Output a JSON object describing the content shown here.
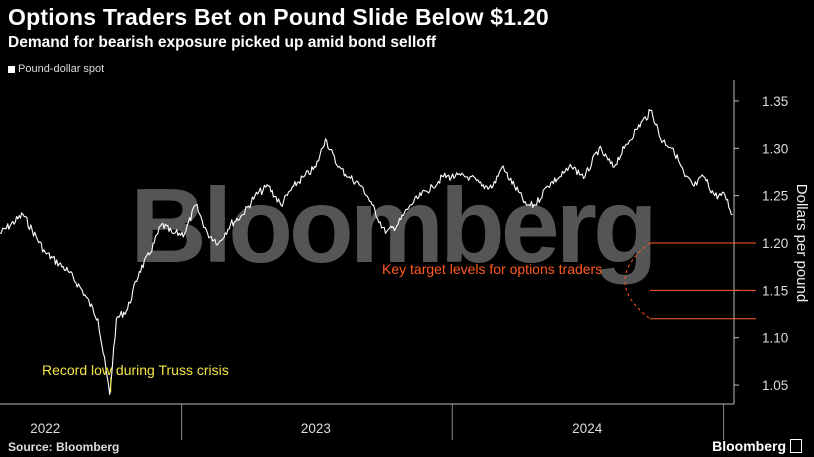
{
  "header": {
    "title": "Options Traders Bet on Pound Slide Below $1.20",
    "subtitle": "Demand for bearish exposure picked up amid bond selloff"
  },
  "legend_label": "Pound-dollar spot",
  "footer": {
    "source": "Source: Bloomberg",
    "brand": "Bloomberg"
  },
  "watermark": "Bloomberg",
  "colors": {
    "line": "#ffffff",
    "annotation_orange": "#ff5a1f",
    "annotation_yellow": "#f5e447",
    "watermark": "#9a9a9a"
  },
  "chart_data": {
    "type": "line",
    "title": "Options Traders Bet on Pound Slide Below $1.20",
    "subtitle": "Demand for bearish exposure picked up amid bond selloff",
    "ylabel": "Dollars per pound",
    "xlabel": "",
    "ylim": [
      1.03,
      1.37
    ],
    "xlim": [
      "2022-05-01",
      "2025-01-15"
    ],
    "y_ticks": [
      1.05,
      1.1,
      1.15,
      1.2,
      1.25,
      1.3,
      1.35
    ],
    "y_tick_labels": [
      "1.05",
      "1.10",
      "1.15",
      "1.20",
      "1.25",
      "1.30",
      "1.35"
    ],
    "x_ticks": [
      "2022-07-01",
      "2023-07-01",
      "2024-07-01"
    ],
    "x_tick_labels": [
      "2022",
      "2023",
      "2024"
    ],
    "grid": false,
    "legend": "top-left",
    "series": [
      {
        "name": "Pound-dollar spot",
        "x": [
          "2022-05-01",
          "2022-06-01",
          "2022-07-01",
          "2022-08-01",
          "2022-08-20",
          "2022-09-10",
          "2022-09-26",
          "2022-10-05",
          "2022-10-20",
          "2022-11-05",
          "2022-11-20",
          "2022-12-05",
          "2022-12-20",
          "2023-01-05",
          "2023-01-20",
          "2023-02-05",
          "2023-02-20",
          "2023-03-08",
          "2023-03-25",
          "2023-04-10",
          "2023-04-28",
          "2023-05-15",
          "2023-06-01",
          "2023-06-15",
          "2023-07-01",
          "2023-07-14",
          "2023-07-31",
          "2023-08-15",
          "2023-09-01",
          "2023-09-15",
          "2023-10-03",
          "2023-10-20",
          "2023-11-05",
          "2023-11-20",
          "2023-12-05",
          "2023-12-20",
          "2024-01-05",
          "2024-01-25",
          "2024-02-10",
          "2024-02-25",
          "2024-03-08",
          "2024-03-25",
          "2024-04-10",
          "2024-04-22",
          "2024-05-08",
          "2024-05-25",
          "2024-06-10",
          "2024-06-28",
          "2024-07-17",
          "2024-08-05",
          "2024-08-20",
          "2024-09-05",
          "2024-09-26",
          "2024-10-08",
          "2024-10-25",
          "2024-11-10",
          "2024-11-22",
          "2024-12-05",
          "2024-12-20",
          "2025-01-03",
          "2025-01-13"
        ],
        "y": [
          1.21,
          1.23,
          1.19,
          1.17,
          1.15,
          1.12,
          1.04,
          1.12,
          1.13,
          1.17,
          1.19,
          1.22,
          1.21,
          1.21,
          1.24,
          1.21,
          1.2,
          1.22,
          1.23,
          1.25,
          1.26,
          1.24,
          1.26,
          1.27,
          1.28,
          1.31,
          1.28,
          1.27,
          1.26,
          1.24,
          1.21,
          1.22,
          1.24,
          1.25,
          1.26,
          1.27,
          1.27,
          1.27,
          1.26,
          1.26,
          1.28,
          1.26,
          1.24,
          1.24,
          1.26,
          1.27,
          1.28,
          1.27,
          1.3,
          1.28,
          1.3,
          1.32,
          1.34,
          1.31,
          1.3,
          1.27,
          1.26,
          1.27,
          1.25,
          1.25,
          1.23
        ]
      }
    ],
    "reference_lines": [
      1.2,
      1.15,
      1.12
    ],
    "annotations": [
      {
        "text": "Key target levels for options traders",
        "color": "orange"
      },
      {
        "text": "Record low during Truss crisis",
        "color": "yellow",
        "x": "2022-09-26",
        "y": 1.04
      }
    ]
  }
}
